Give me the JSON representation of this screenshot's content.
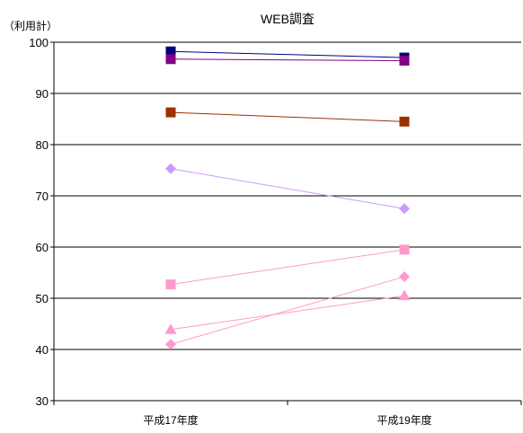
{
  "chart_data": {
    "type": "line",
    "title": "WEB調査",
    "ylabel": "（利用計）",
    "categories": [
      "平成17年度",
      "平成19年度"
    ],
    "ylim": [
      30,
      100
    ],
    "yticks": [
      30,
      40,
      50,
      60,
      70,
      80,
      90,
      100
    ],
    "grid": true,
    "legend": "none",
    "series": [
      {
        "values": [
          98.2,
          97.0
        ],
        "color": "#000080",
        "marker": "square"
      },
      {
        "values": [
          96.7,
          96.4
        ],
        "color": "#800080",
        "marker": "square"
      },
      {
        "values": [
          86.3,
          84.5
        ],
        "color": "#993300",
        "marker": "square"
      },
      {
        "values": [
          75.3,
          67.5
        ],
        "color": "#cc99ff",
        "marker": "diamond"
      },
      {
        "values": [
          52.7,
          59.5
        ],
        "color": "#ff99cc",
        "marker": "square"
      },
      {
        "values": [
          43.9,
          50.5
        ],
        "color": "#ff99cc",
        "marker": "triangle"
      },
      {
        "values": [
          41.0,
          54.2
        ],
        "color": "#ff99cc",
        "marker": "diamond"
      }
    ]
  }
}
